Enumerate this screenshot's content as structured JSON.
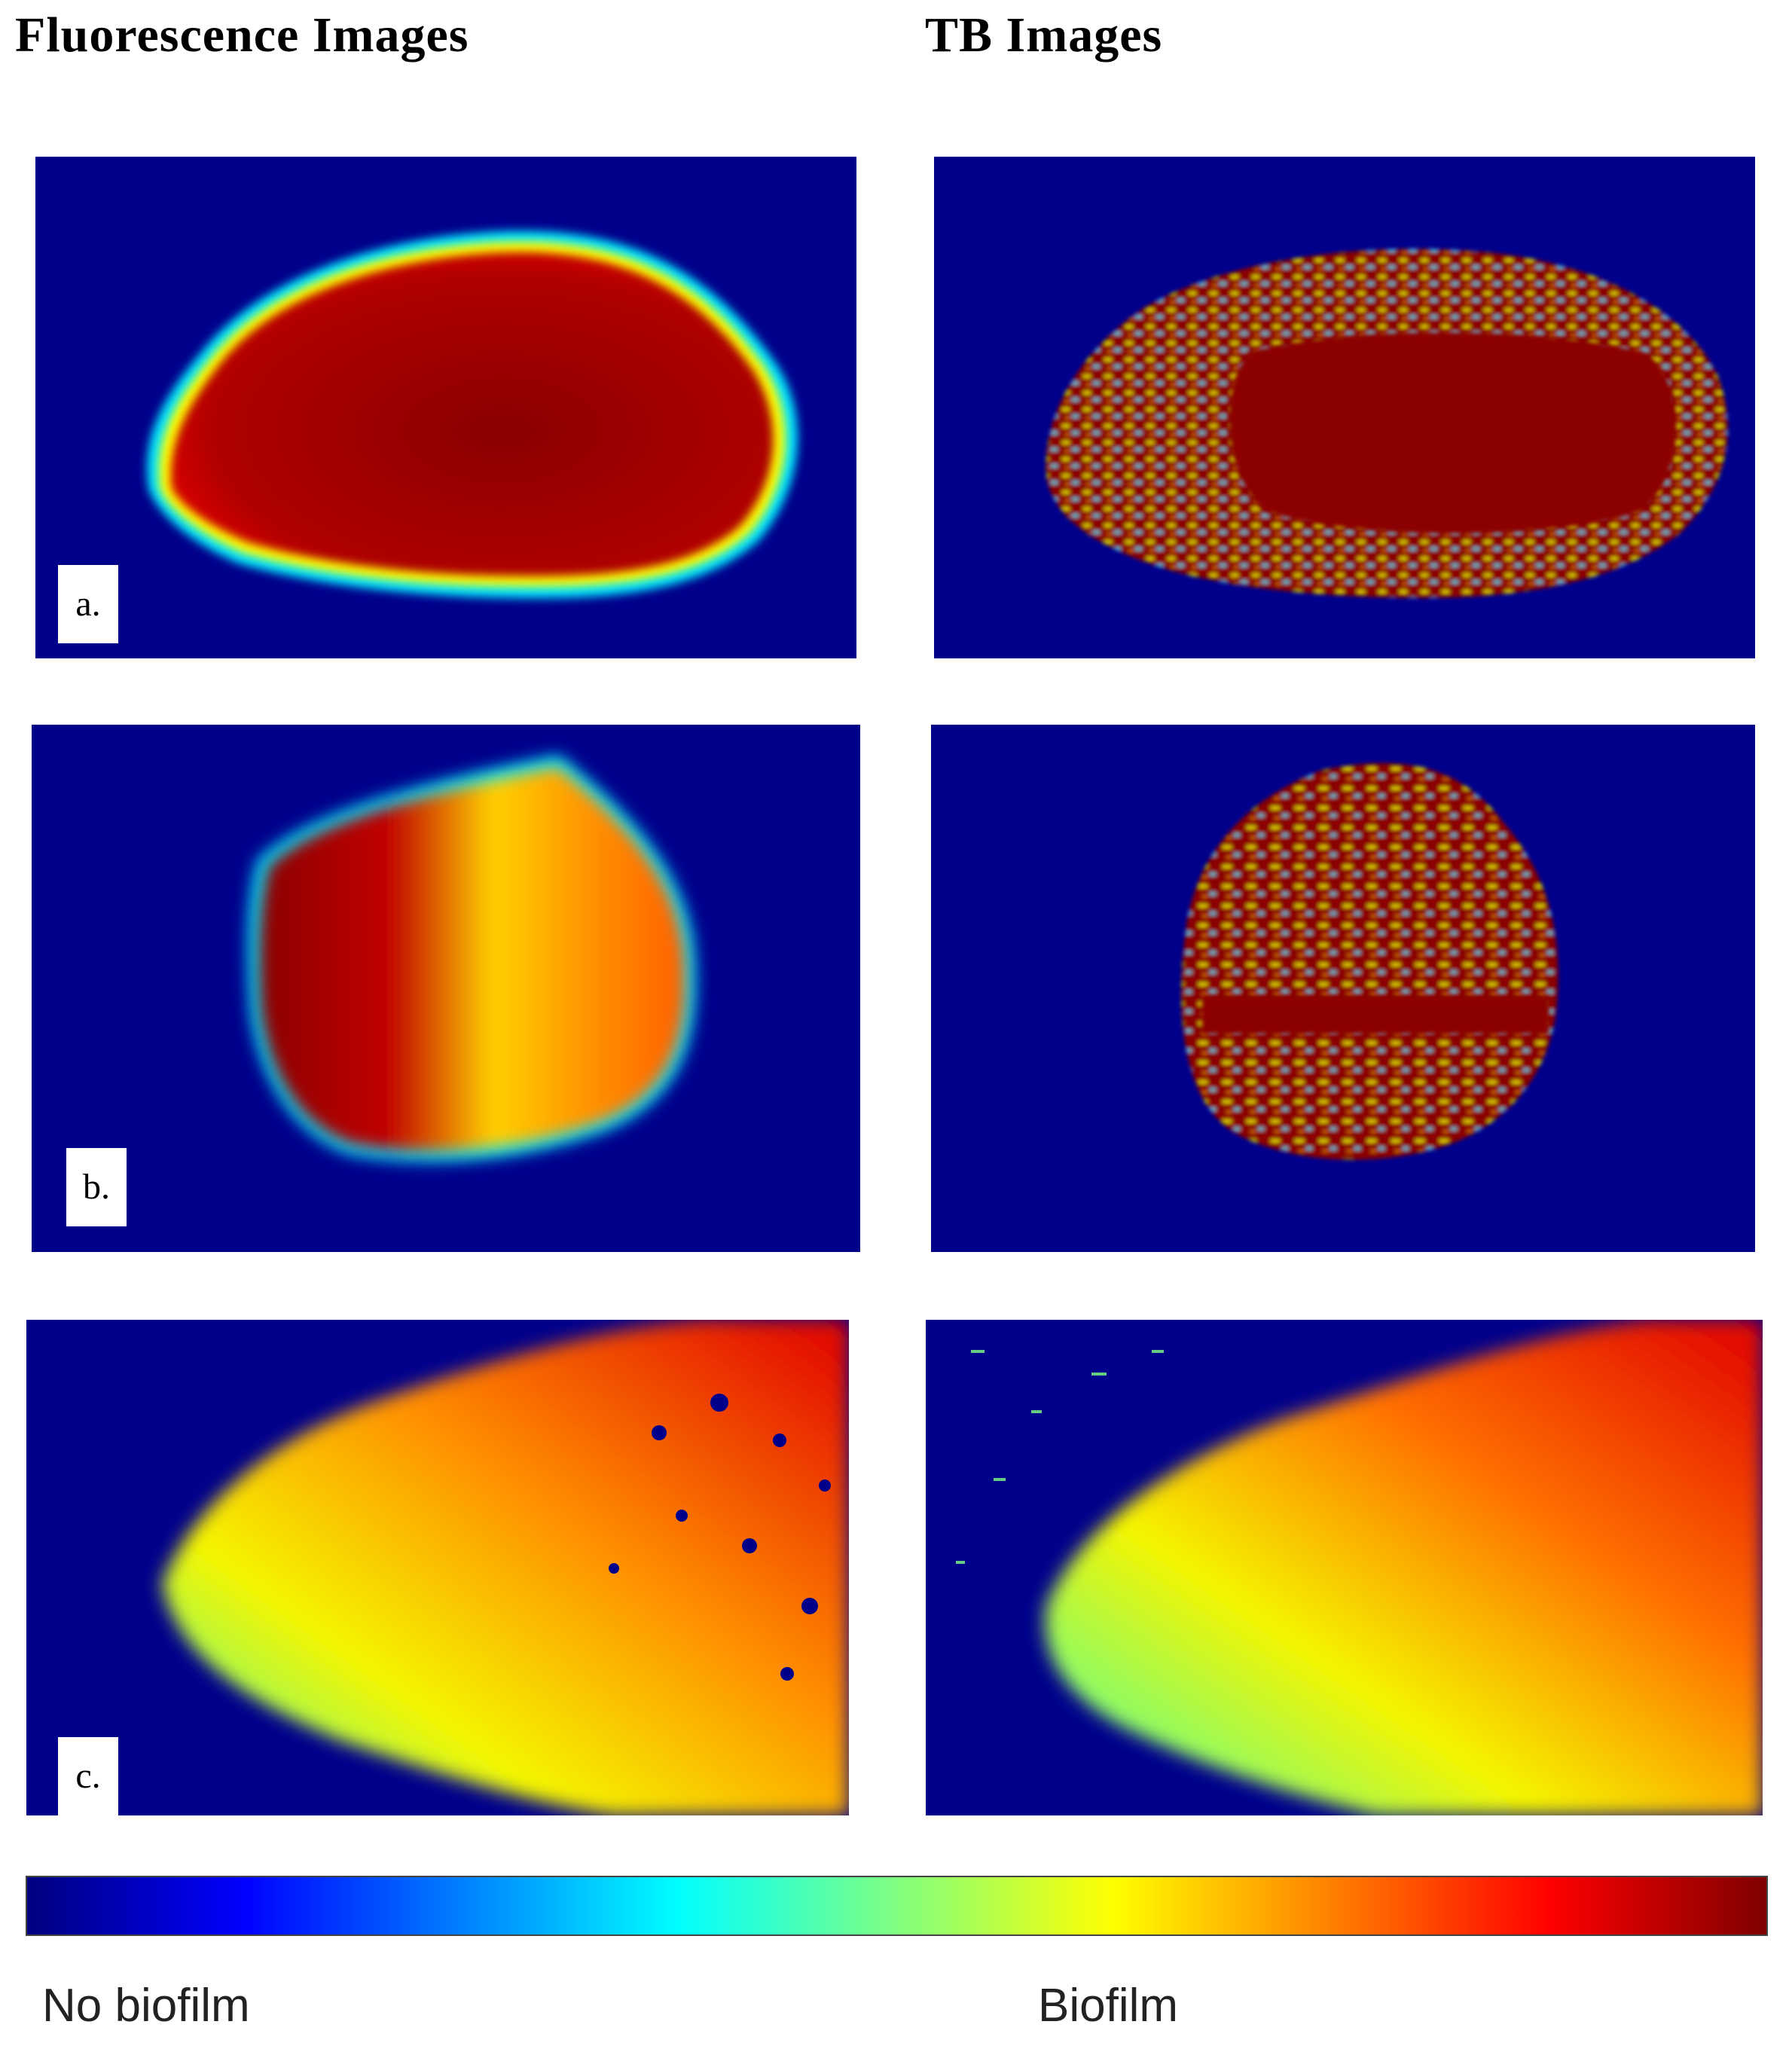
{
  "columns": {
    "left_title": "Fluorescence Images",
    "right_title": "TB Images"
  },
  "rows": [
    {
      "label": "a."
    },
    {
      "label": "b."
    },
    {
      "label": "c."
    }
  ],
  "colorbar": {
    "colormap": "jet",
    "stops": [
      "#00007f",
      "#0000ff",
      "#0080ff",
      "#00ffff",
      "#80ff80",
      "#ffff00",
      "#ff8000",
      "#ff0000",
      "#7f0000"
    ],
    "low_label": "No biofilm",
    "high_label": "Biofilm"
  },
  "colors": {
    "background_blue": "#00008b",
    "dark_red": "#8b0000",
    "red": "#e00000",
    "orange": "#ff8c00",
    "yellow": "#f5f500",
    "green": "#7fff7f",
    "cyan": "#00e5ff"
  }
}
